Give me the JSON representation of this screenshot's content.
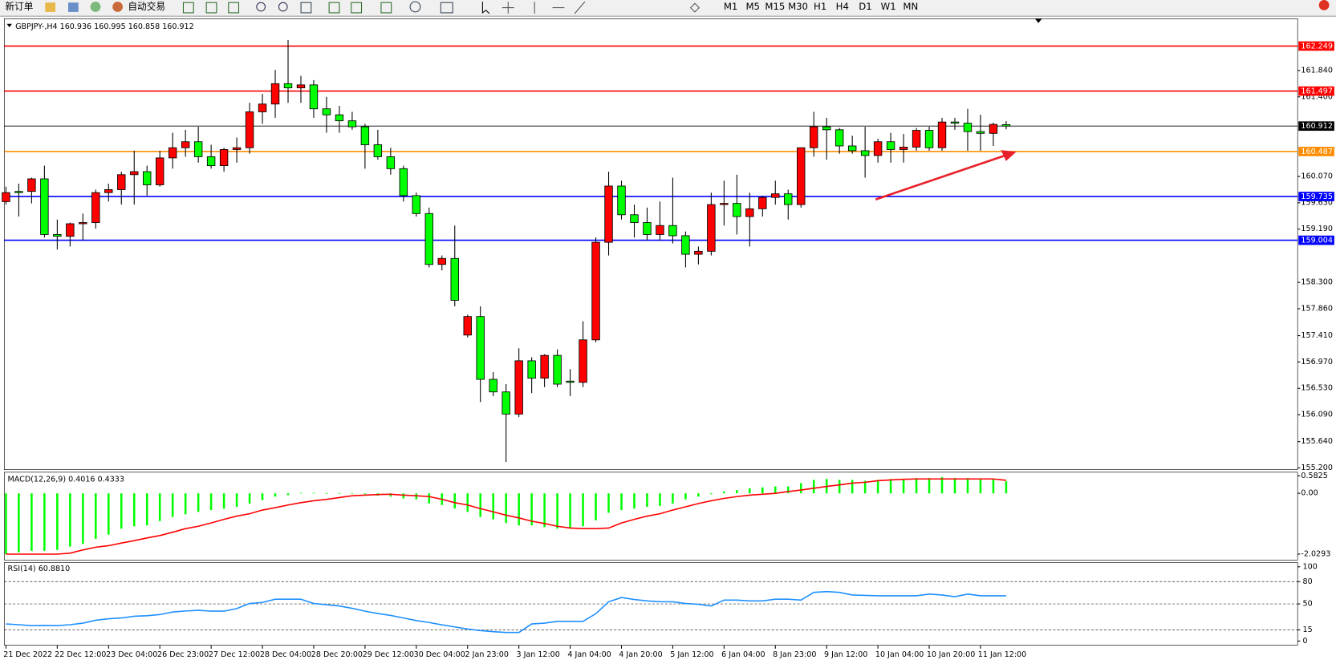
{
  "toolbar": {
    "new_order": "新订单",
    "auto_trading": "自动交易",
    "timeframes": [
      "M1",
      "M5",
      "M15",
      "M30",
      "H1",
      "H4",
      "D1",
      "W1",
      "MN"
    ]
  },
  "chart_data": [
    {
      "type": "candlestick",
      "title": "GBPJPY-,H4",
      "categories": [
        "21 Dec 2022",
        null,
        null,
        null,
        "22 Dec 12:00",
        null,
        null,
        null,
        "23 Dec 04:00",
        null,
        null,
        null,
        "26 Dec 23:00",
        null,
        null,
        null,
        "27 Dec 12:00",
        null,
        null,
        null,
        "28 Dec 04:00",
        null,
        null,
        null,
        "28 Dec 20:00",
        null,
        null,
        null,
        "29 Dec 12:00",
        null,
        null,
        null,
        "30 Dec 04:00",
        null,
        null,
        null,
        "2 Jan 23:00",
        null,
        null,
        null,
        "3 Jan 12:00",
        null,
        null,
        null,
        "4 Jan 04:00",
        null,
        null,
        null,
        "4 Jan 20:00",
        null,
        null,
        null,
        "5 Jan 12:00",
        null,
        null,
        null,
        "6 Jan 04:00",
        null,
        null,
        null,
        "8 Jan 23:00",
        null,
        null,
        null,
        "9 Jan 12:00",
        null,
        null,
        null,
        "10 Jan 04:00",
        null,
        null,
        null,
        "10 Jan 20:00",
        null,
        null,
        null,
        "11 Jan 12:00",
        null,
        null
      ],
      "open": [
        159.65,
        159.82,
        159.82,
        160.03,
        159.1,
        159.07,
        159.28,
        159.3,
        159.8,
        159.85,
        160.1,
        160.15,
        159.93,
        160.38,
        160.55,
        160.65,
        160.4,
        160.25,
        160.52,
        160.55,
        161.15,
        161.28,
        161.62,
        161.55,
        161.6,
        161.2,
        161.1,
        161.0,
        160.9,
        160.6,
        160.4,
        160.2,
        159.75,
        159.45,
        158.6,
        158.7,
        157.42,
        157.73,
        156.68,
        156.47,
        156.1,
        156.99,
        156.7,
        157.08,
        156.65,
        156.63,
        157.34,
        158.97,
        159.91,
        159.43,
        159.3,
        159.1,
        159.25,
        159.08,
        158.77,
        158.82,
        159.6,
        159.62,
        159.4,
        159.53,
        159.72,
        159.78,
        159.6,
        160.55,
        160.9,
        160.85,
        160.58,
        160.5,
        160.42,
        160.65,
        160.52,
        160.56,
        160.84,
        160.55,
        160.98,
        160.96,
        160.82,
        160.79,
        160.936
      ],
      "high": [
        159.9,
        159.95,
        160.05,
        160.25,
        159.35,
        159.3,
        159.45,
        159.85,
        159.95,
        160.15,
        160.5,
        160.25,
        160.5,
        160.8,
        160.85,
        160.9,
        160.6,
        160.55,
        160.72,
        161.3,
        161.45,
        161.85,
        162.35,
        161.75,
        161.68,
        161.4,
        161.25,
        161.15,
        160.95,
        160.85,
        160.55,
        160.25,
        159.8,
        159.55,
        158.75,
        159.25,
        157.76,
        157.9,
        156.8,
        156.6,
        157.2,
        157.05,
        157.1,
        157.18,
        156.85,
        157.65,
        159.05,
        160.15,
        160.0,
        159.6,
        159.55,
        159.65,
        160.05,
        159.15,
        158.9,
        159.8,
        160.0,
        160.1,
        159.8,
        159.75,
        160.0,
        159.85,
        160.55,
        161.15,
        161.05,
        160.88,
        160.75,
        160.9,
        160.7,
        160.8,
        160.78,
        160.88,
        160.9,
        161.05,
        161.05,
        161.2,
        161.1,
        160.97,
        160.995
      ],
      "low": [
        159.6,
        159.4,
        159.62,
        159.05,
        158.85,
        158.9,
        159.0,
        159.2,
        159.65,
        159.6,
        159.6,
        159.75,
        159.9,
        160.2,
        160.4,
        160.3,
        160.2,
        160.15,
        160.3,
        160.45,
        160.95,
        161.05,
        161.3,
        161.3,
        161.05,
        160.8,
        160.8,
        160.85,
        160.2,
        160.35,
        160.1,
        159.65,
        159.4,
        158.55,
        158.5,
        157.9,
        157.38,
        156.3,
        156.4,
        155.3,
        156.05,
        156.45,
        156.55,
        156.55,
        156.4,
        156.55,
        157.3,
        158.75,
        159.35,
        159.05,
        159.0,
        159.0,
        158.95,
        158.55,
        158.6,
        158.75,
        159.25,
        159.1,
        158.9,
        159.4,
        159.6,
        159.35,
        159.55,
        160.4,
        160.35,
        160.45,
        160.45,
        160.05,
        160.3,
        160.3,
        160.3,
        160.5,
        160.5,
        160.5,
        160.85,
        160.5,
        160.5,
        160.58,
        160.858
      ],
      "close": [
        159.8,
        159.8,
        160.03,
        159.1,
        159.07,
        159.28,
        159.3,
        159.8,
        159.85,
        160.1,
        160.15,
        159.93,
        160.38,
        160.55,
        160.65,
        160.4,
        160.25,
        160.52,
        160.55,
        161.15,
        161.28,
        161.62,
        161.55,
        161.6,
        161.2,
        161.1,
        161.0,
        160.9,
        160.6,
        160.4,
        160.2,
        159.75,
        159.45,
        158.6,
        158.7,
        158.0,
        157.73,
        156.68,
        156.47,
        156.1,
        156.99,
        156.7,
        157.08,
        156.6,
        156.63,
        157.34,
        158.97,
        159.91,
        159.43,
        159.3,
        159.1,
        159.25,
        159.08,
        158.77,
        158.82,
        159.6,
        159.62,
        159.4,
        159.53,
        159.72,
        159.78,
        159.6,
        160.55,
        160.9,
        160.85,
        160.58,
        160.5,
        160.42,
        160.65,
        160.52,
        160.56,
        160.84,
        160.55,
        160.98,
        160.96,
        160.82,
        160.79,
        160.94,
        160.912
      ],
      "up_color": "#ff0000",
      "down_color": "#00ff00",
      "levels": [
        {
          "value": 162.249,
          "color": "#ff0000"
        },
        {
          "value": 161.497,
          "color": "#ff0000"
        },
        {
          "value": 160.912,
          "color": "#000000"
        },
        {
          "value": 160.487,
          "color": "#ff8c00"
        },
        {
          "value": 159.735,
          "color": "#0000ff"
        },
        {
          "value": 159.004,
          "color": "#0000ff"
        }
      ],
      "ylim": [
        155.171,
        162.705
      ],
      "yticks": [
        {
          "value": 161.84,
          "label": "161.840"
        },
        {
          "value": 161.4,
          "label": "161.400"
        },
        {
          "value": 160.07,
          "label": "160.070"
        },
        {
          "value": 159.63,
          "label": "159.630"
        },
        {
          "value": 159.19,
          "label": "159.190"
        },
        {
          "value": 158.3,
          "label": "158.300"
        },
        {
          "value": 157.86,
          "label": "157.860"
        },
        {
          "value": 157.41,
          "label": "157.410"
        },
        {
          "value": 156.97,
          "label": "156.970"
        },
        {
          "value": 156.53,
          "label": "156.530"
        },
        {
          "value": 156.09,
          "label": "156.090"
        },
        {
          "value": 155.64,
          "label": "155.640"
        },
        {
          "value": 155.2,
          "label": "155.200"
        }
      ]
    },
    {
      "type": "macd",
      "title": "MACD(12,26,9)",
      "values": [
        -2.03,
        -1.97,
        -1.92,
        -1.92,
        -1.89,
        -1.78,
        -1.69,
        -1.52,
        -1.38,
        -1.18,
        -1.1,
        -1.07,
        -0.93,
        -0.79,
        -0.7,
        -0.62,
        -0.56,
        -0.51,
        -0.45,
        -0.34,
        -0.23,
        -0.11,
        -0.06,
        0.02,
        0.02,
        0.01,
        0.01,
        0.01,
        -0.03,
        -0.08,
        -0.11,
        -0.17,
        -0.2,
        -0.34,
        -0.39,
        -0.51,
        -0.62,
        -0.79,
        -0.87,
        -0.99,
        -1.07,
        -1.07,
        -1.13,
        -1.18,
        -1.18,
        -1.1,
        -0.9,
        -0.65,
        -0.56,
        -0.51,
        -0.45,
        -0.42,
        -0.34,
        -0.2,
        -0.11,
        -0.03,
        0.06,
        0.11,
        0.17,
        0.2,
        0.23,
        0.23,
        0.34,
        0.45,
        0.48,
        0.45,
        0.45,
        0.42,
        0.45,
        0.48,
        0.48,
        0.51,
        0.51,
        0.54,
        0.51,
        0.51,
        0.48,
        0.48,
        0.4016
      ],
      "signal": [
        -2.03,
        -2.03,
        -2.03,
        -2.03,
        -2.03,
        -2.0,
        -1.89,
        -1.8,
        -1.75,
        -1.66,
        -1.58,
        -1.49,
        -1.41,
        -1.3,
        -1.18,
        -1.1,
        -0.99,
        -0.87,
        -0.76,
        -0.68,
        -0.56,
        -0.48,
        -0.39,
        -0.31,
        -0.25,
        -0.2,
        -0.14,
        -0.08,
        -0.06,
        -0.04,
        -0.03,
        -0.06,
        -0.08,
        -0.11,
        -0.2,
        -0.31,
        -0.39,
        -0.51,
        -0.62,
        -0.73,
        -0.82,
        -0.93,
        -1.01,
        -1.1,
        -1.16,
        -1.18,
        -1.18,
        -1.16,
        -0.99,
        -0.87,
        -0.76,
        -0.68,
        -0.56,
        -0.45,
        -0.34,
        -0.25,
        -0.17,
        -0.11,
        -0.06,
        -0.03,
        0,
        0.06,
        0.11,
        0.17,
        0.23,
        0.28,
        0.34,
        0.37,
        0.42,
        0.45,
        0.47,
        0.48,
        0.48,
        0.48,
        0.48,
        0.48,
        0.48,
        0.48,
        0.4333
      ],
      "color": "#00ff00",
      "signal_color": "#ff0000",
      "ylim": [
        -2.227,
        0.705
      ],
      "yticks": [
        0.5825,
        {
          "value": 0,
          "label": "0.00"
        },
        -2.0293
      ]
    },
    {
      "type": "line",
      "title": "RSI(14)",
      "values": [
        23.0,
        22.0,
        20.7,
        21,
        20.7,
        22,
        24.1,
        28,
        30,
        31,
        33.3,
        34,
        35.6,
        39.1,
        40.5,
        41.4,
        40.2,
        40.2,
        43.7,
        50.6,
        52,
        56.3,
        56.3,
        56.3,
        50.6,
        49,
        47.1,
        44,
        40.2,
        37,
        34.5,
        31,
        27.6,
        25,
        21.8,
        19,
        16.1,
        14,
        12.6,
        11.5,
        11.5,
        23,
        24.1,
        26.4,
        26.4,
        26.4,
        36.8,
        52.9,
        58.6,
        56,
        54.0,
        53,
        52.9,
        50.6,
        49.4,
        47.1,
        55.2,
        55.2,
        54.0,
        54.0,
        56.3,
        56.3,
        55.2,
        65.5,
        66.7,
        65.5,
        62.1,
        61.5,
        60.9,
        60.9,
        60.9,
        60.9,
        63.2,
        62.1,
        59.8,
        63.2,
        60.9,
        60.9,
        60.881
      ],
      "value_labels": [
        null,
        null,
        null,
        null,
        null,
        null,
        null,
        null,
        null,
        null,
        null,
        null,
        null,
        null,
        null,
        null,
        null,
        null,
        null,
        null,
        null,
        null,
        null,
        null,
        null,
        null,
        null,
        null,
        null,
        null,
        null,
        null,
        null,
        null,
        null,
        null,
        null,
        null,
        null,
        null,
        null,
        null,
        null,
        null,
        null,
        null,
        null,
        null,
        null,
        null,
        null,
        null,
        null,
        null,
        null,
        null,
        null,
        null,
        null,
        null,
        null,
        null,
        null,
        null,
        null,
        null,
        null,
        null,
        null,
        null,
        null,
        null,
        null,
        null,
        null,
        null,
        null,
        null,
        "60.8810"
      ],
      "color": "#1e90ff",
      "levels": [
        80,
        50,
        15
      ],
      "ylim": [
        -5.7,
        105.7
      ],
      "yticks": [
        100,
        80,
        50,
        15,
        0
      ]
    }
  ]
}
